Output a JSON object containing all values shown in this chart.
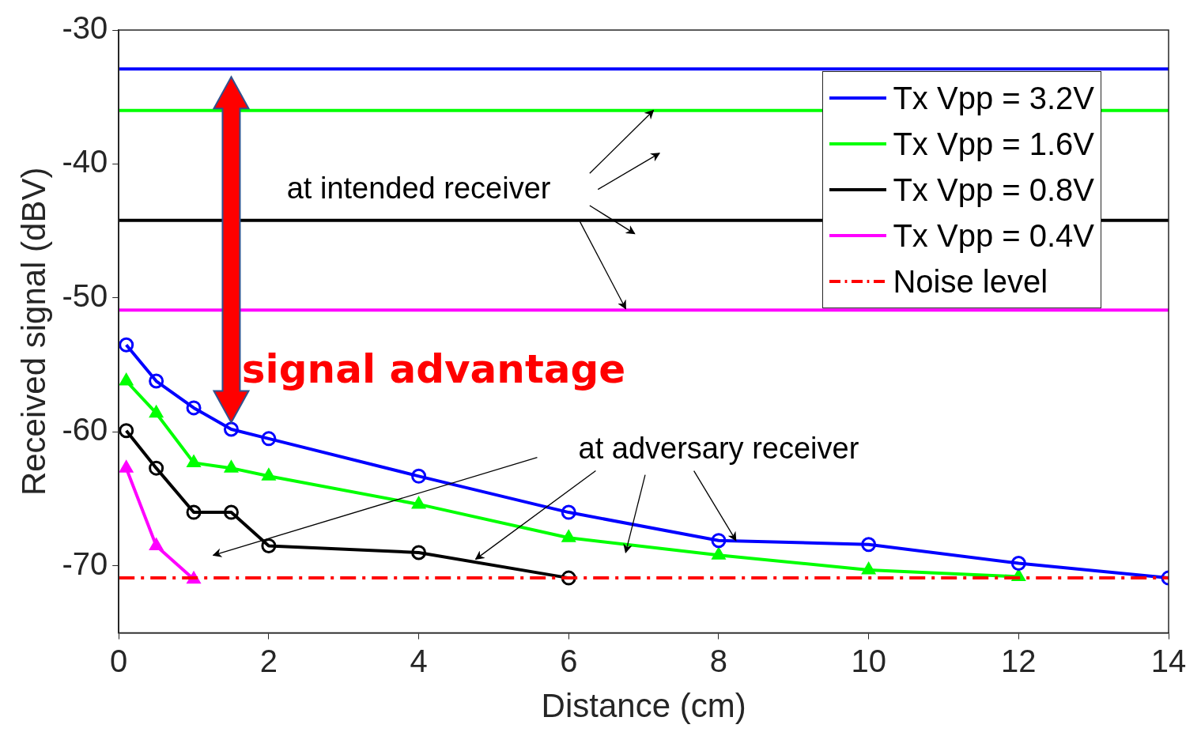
{
  "chart_data": {
    "type": "line",
    "xlabel": "Distance (cm)",
    "ylabel": "Received signal (dBV)",
    "xlim": [
      0,
      14
    ],
    "xticks": [
      0,
      2,
      4,
      6,
      8,
      10,
      12,
      14
    ],
    "ylim": [
      -75,
      -30
    ],
    "yticks": [
      -70,
      -60,
      -50,
      -40,
      -30
    ],
    "grid": false,
    "legend": "top right",
    "annotations": [
      {
        "text": "at intended receiver",
        "x": 7.13,
        "y": -36.0
      },
      "signal advantage",
      {
        "text": "at adversary receiver",
        "x": 8.23,
        "y": -68.1
      }
    ],
    "series": [
      {
        "name": "Tx Vpp = 3.2V",
        "color": "#0000ff",
        "x": [
          0,
          14
        ],
        "values": [
          -32.9,
          -32.9
        ],
        "marker": "none",
        "line_style": "solid"
      },
      {
        "name": "Tx Vpp = 1.6V",
        "color": "#00ff00",
        "x": [
          0,
          14
        ],
        "values": [
          -36.0,
          -36.0
        ],
        "marker": "none",
        "line_style": "solid"
      },
      {
        "name": "Tx Vpp = 0.8V",
        "color": "#000000",
        "x": [
          0,
          14
        ],
        "values": [
          -44.2,
          -44.2
        ],
        "marker": "none",
        "line_style": "solid"
      },
      {
        "name": "Tx Vpp = 0.4V",
        "color": "#ff00ff",
        "x": [
          0,
          14
        ],
        "values": [
          -50.9,
          -50.9
        ],
        "marker": "none",
        "line_style": "solid"
      },
      {
        "name": "Noise level",
        "color": "#ff0000",
        "x": [
          0,
          14
        ],
        "values": [
          -70.9,
          -70.9
        ],
        "marker": "none",
        "line_style": "dashed"
      },
      {
        "color": "#0000ff",
        "x": [
          0.1,
          0.5,
          1,
          1.5,
          2,
          4,
          6,
          8,
          10,
          12,
          14
        ],
        "values": [
          -53.5,
          -56.2,
          -58.2,
          -59.8,
          -60.5,
          -63.3,
          -66.0,
          -68.1,
          -68.4,
          -69.8,
          -70.9
        ],
        "marker": "circle",
        "line_style": "solid"
      },
      {
        "color": "#00ff00",
        "x": [
          0.1,
          0.5,
          1,
          1.5,
          2,
          4,
          6,
          8,
          10,
          12
        ],
        "values": [
          -56.2,
          -58.6,
          -62.3,
          -62.7,
          -63.3,
          -65.4,
          -67.9,
          -69.2,
          -70.3,
          -70.8
        ],
        "marker": "triangle",
        "line_style": "solid"
      },
      {
        "color": "#000000",
        "x": [
          0.1,
          0.5,
          1,
          1.5,
          2,
          4,
          6
        ],
        "values": [
          -59.9,
          -62.7,
          -66.0,
          -66.0,
          -68.5,
          -69.0,
          -70.9
        ],
        "marker": "circle",
        "line_style": "solid"
      },
      {
        "color": "#ff00ff",
        "x": [
          0.1,
          0.5,
          1
        ],
        "values": [
          -62.7,
          -68.5,
          -71.0
        ],
        "marker": "triangle",
        "line_style": "solid"
      }
    ]
  }
}
